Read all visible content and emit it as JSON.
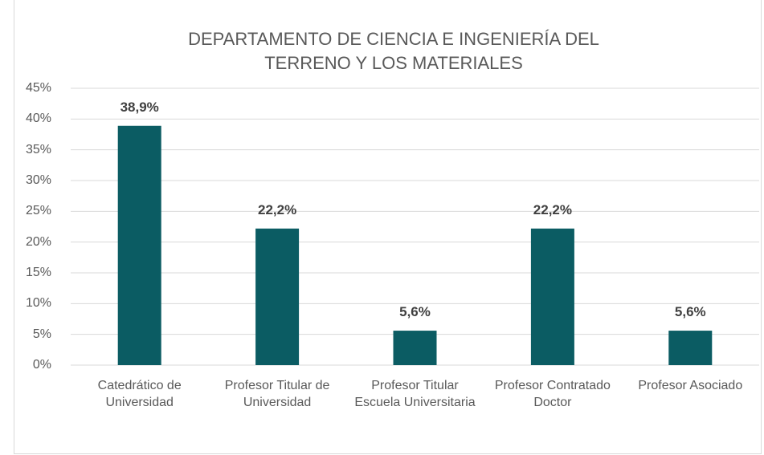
{
  "chart_data": {
    "type": "bar",
    "title": "DEPARTAMENTO DE CIENCIA E INGENIERÍA DEL TERRENO Y LOS MATERIALES",
    "categories": [
      "Catedrático de Universidad",
      "Profesor Titular de Universidad",
      "Profesor Titular Escuela Universitaria",
      "Profesor Contratado Doctor",
      "Profesor Asociado"
    ],
    "values": [
      38.9,
      22.2,
      5.6,
      22.2,
      5.6
    ],
    "value_labels": [
      "38,9%",
      "22,2%",
      "5,6%",
      "22,2%",
      "5,6%"
    ],
    "color": "#0b5c63",
    "ylim": [
      0,
      45
    ],
    "yticks": [
      {
        "value": 0,
        "label": "0%"
      },
      {
        "value": 5,
        "label": "5%"
      },
      {
        "value": 10,
        "label": "10%"
      },
      {
        "value": 15,
        "label": "15%"
      },
      {
        "value": 20,
        "label": "20%"
      },
      {
        "value": 25,
        "label": "25%"
      },
      {
        "value": 30,
        "label": "30%"
      },
      {
        "value": 35,
        "label": "35%"
      },
      {
        "value": 40,
        "label": "40%"
      },
      {
        "value": 45,
        "label": "45%"
      }
    ],
    "grid": true
  }
}
